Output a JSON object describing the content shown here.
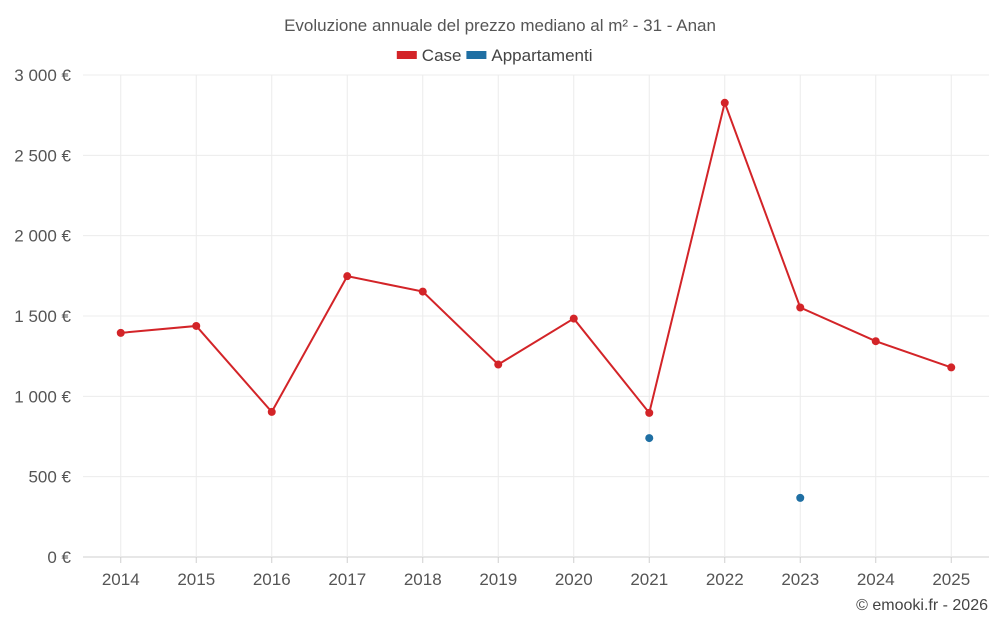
{
  "chart_data": {
    "type": "line",
    "title": "Evoluzione annuale del prezzo mediano al m² - 31 - Anan",
    "categories": [
      "2014",
      "2015",
      "2016",
      "2017",
      "2018",
      "2019",
      "2020",
      "2021",
      "2022",
      "2023",
      "2024",
      "2025"
    ],
    "series": [
      {
        "name": "Case",
        "color": "#d32428",
        "values": [
          1395,
          1438,
          903,
          1748,
          1652,
          1198,
          1484,
          897,
          2827,
          1553,
          1343,
          1180
        ]
      },
      {
        "name": "Appartamenti",
        "color": "#1f6fa3",
        "values": [
          null,
          null,
          null,
          null,
          null,
          null,
          null,
          740,
          null,
          368,
          null,
          null
        ]
      }
    ],
    "ylim": [
      0,
      3000
    ],
    "yticks": [
      0,
      500,
      1000,
      1500,
      2000,
      2500,
      3000
    ],
    "ytick_labels": [
      "0 €",
      "500 €",
      "1 000 €",
      "1 500 €",
      "2 000 €",
      "2 500 €",
      "3 000 €"
    ],
    "xlabel": "",
    "ylabel": "",
    "grid": true,
    "legend_position": "top-center"
  },
  "credit": "© emooki.fr - 2026"
}
